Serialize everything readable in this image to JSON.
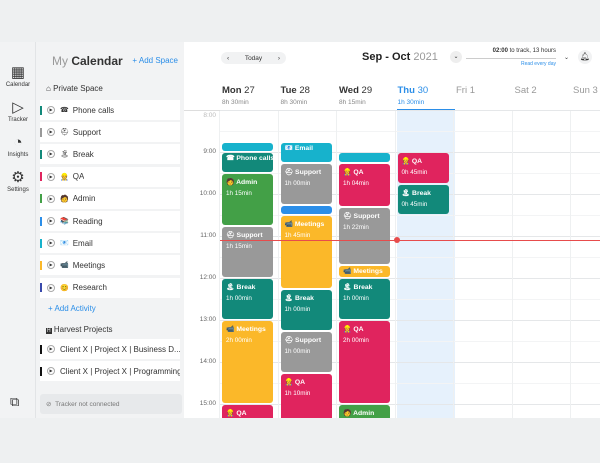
{
  "rail": [
    {
      "label": "Calendar",
      "icon": "calendar-icon",
      "glyph": "▦"
    },
    {
      "label": "Tracker",
      "icon": "tracker-icon",
      "glyph": "▷"
    },
    {
      "label": "Insights",
      "icon": "insights-icon",
      "glyph": "◔"
    },
    {
      "label": "Settings",
      "icon": "settings-icon",
      "glyph": "⚙"
    }
  ],
  "chat_icon": "⧉",
  "sidebar": {
    "title_my": "My",
    "title_cal": "Calendar",
    "add_space": "+ Add Space",
    "private_space": "Private Space",
    "activities": [
      {
        "label": "Phone calls",
        "color": "#12897a",
        "emoji": "☎"
      },
      {
        "label": "Support",
        "color": "#999999",
        "emoji": "⛑"
      },
      {
        "label": "Break",
        "color": "#12897a",
        "emoji": "🏝"
      },
      {
        "label": "QA",
        "color": "#e0245e",
        "emoji": "👷"
      },
      {
        "label": "Admin",
        "color": "#43a047",
        "emoji": "🧑"
      },
      {
        "label": "Reading",
        "color": "#2b8ee8",
        "emoji": "📚"
      },
      {
        "label": "Email",
        "color": "#17b2cc",
        "emoji": "📧"
      },
      {
        "label": "Meetings",
        "color": "#fbb829",
        "emoji": "📹"
      },
      {
        "label": "Research",
        "color": "#3949ab",
        "emoji": "😊"
      }
    ],
    "add_activity": "+ Add Activity",
    "harvest": "Harvest Projects",
    "projects": [
      {
        "label": "Client X | Project X | Business D...",
        "color": "#111111"
      },
      {
        "label": "Client X | Project X | Programming",
        "color": "#111111"
      }
    ],
    "tracker_status": "Tracker not connected"
  },
  "header": {
    "today": "Today",
    "month": "Sep - Oct",
    "year": "2021",
    "track": "02:00",
    "track_rest": " to track, 13 hours",
    "track_sub": "Read every day"
  },
  "days": [
    {
      "name": "Mon",
      "num": "27",
      "dur": "8h 30min"
    },
    {
      "name": "Tue",
      "num": "28",
      "dur": "8h 30min"
    },
    {
      "name": "Wed",
      "num": "29",
      "dur": "8h 15min"
    },
    {
      "name": "Thu",
      "num": "30",
      "dur": "1h 30min",
      "today": true
    },
    {
      "name": "Fri",
      "num": "1",
      "dur": ""
    },
    {
      "name": "Sat",
      "num": "2",
      "dur": ""
    },
    {
      "name": "Sun",
      "num": "3",
      "dur": ""
    }
  ],
  "hours": [
    "8:00",
    "9:00",
    "10:00",
    "11:00",
    "12:00",
    "13:00",
    "14:00",
    "15:00"
  ],
  "now": "11:05",
  "events": [
    {
      "day": 0,
      "start": "8:45",
      "end": "9:00",
      "title": "",
      "dur": "",
      "color": "#17b2cc"
    },
    {
      "day": 0,
      "start": "9:00",
      "end": "9:30",
      "title": "Phone calls",
      "dur": "",
      "color": "#12897a",
      "emoji": "☎"
    },
    {
      "day": 0,
      "start": "9:30",
      "end": "10:45",
      "title": "Admin",
      "dur": "1h 15min",
      "color": "#43a047",
      "emoji": "🧑"
    },
    {
      "day": 0,
      "start": "10:45",
      "end": "12:00",
      "title": "Support",
      "dur": "1h 15min",
      "color": "#999999",
      "emoji": "⛑"
    },
    {
      "day": 0,
      "start": "12:00",
      "end": "13:00",
      "title": "Break",
      "dur": "1h 00min",
      "color": "#12897a",
      "emoji": "🏝"
    },
    {
      "day": 0,
      "start": "13:00",
      "end": "15:00",
      "title": "Meetings",
      "dur": "2h 00min",
      "color": "#fbb829",
      "emoji": "📹"
    },
    {
      "day": 0,
      "start": "15:00",
      "end": "16:00",
      "title": "QA",
      "dur": "",
      "color": "#e0245e",
      "emoji": "👷"
    },
    {
      "day": 1,
      "start": "8:45",
      "end": "9:15",
      "title": "Email",
      "dur": "",
      "color": "#17b2cc",
      "emoji": "📧"
    },
    {
      "day": 1,
      "start": "9:15",
      "end": "10:15",
      "title": "Support",
      "dur": "1h 00min",
      "color": "#999999",
      "emoji": "⛑"
    },
    {
      "day": 1,
      "start": "10:15",
      "end": "10:30",
      "title": "",
      "dur": "",
      "color": "#2b8ee8"
    },
    {
      "day": 1,
      "start": "10:30",
      "end": "12:15",
      "title": "Meetings",
      "dur": "1h 45min",
      "color": "#fbb829",
      "emoji": "📹"
    },
    {
      "day": 1,
      "start": "12:15",
      "end": "13:15",
      "title": "Break",
      "dur": "1h 00min",
      "color": "#12897a",
      "emoji": "🏝"
    },
    {
      "day": 1,
      "start": "13:15",
      "end": "14:15",
      "title": "Support",
      "dur": "1h 00min",
      "color": "#999999",
      "emoji": "⛑"
    },
    {
      "day": 1,
      "start": "14:15",
      "end": "15:25",
      "title": "QA",
      "dur": "1h 10min",
      "color": "#e0245e",
      "emoji": "👷"
    },
    {
      "day": 2,
      "start": "9:00",
      "end": "9:15",
      "title": "",
      "dur": "",
      "color": "#17b2cc"
    },
    {
      "day": 2,
      "start": "9:15",
      "end": "10:19",
      "title": "QA",
      "dur": "1h 04min",
      "color": "#e0245e",
      "emoji": "👷"
    },
    {
      "day": 2,
      "start": "10:19",
      "end": "11:41",
      "title": "Support",
      "dur": "1h 22min",
      "color": "#999999",
      "emoji": "⛑"
    },
    {
      "day": 2,
      "start": "11:41",
      "end": "12:00",
      "title": "Meetings",
      "dur": "",
      "color": "#fbb829",
      "emoji": "📹"
    },
    {
      "day": 2,
      "start": "12:00",
      "end": "13:00",
      "title": "Break",
      "dur": "1h 00min",
      "color": "#12897a",
      "emoji": "🏝"
    },
    {
      "day": 2,
      "start": "13:00",
      "end": "15:00",
      "title": "QA",
      "dur": "2h 00min",
      "color": "#e0245e",
      "emoji": "👷"
    },
    {
      "day": 2,
      "start": "15:00",
      "end": "16:00",
      "title": "Admin",
      "dur": "",
      "color": "#43a047",
      "emoji": "🧑"
    },
    {
      "day": 3,
      "start": "9:00",
      "end": "9:45",
      "title": "QA",
      "dur": "0h 45min",
      "color": "#e0245e",
      "emoji": "👷"
    },
    {
      "day": 3,
      "start": "9:45",
      "end": "10:30",
      "title": "Break",
      "dur": "0h 45min",
      "color": "#12897a",
      "emoji": "🏝"
    }
  ]
}
